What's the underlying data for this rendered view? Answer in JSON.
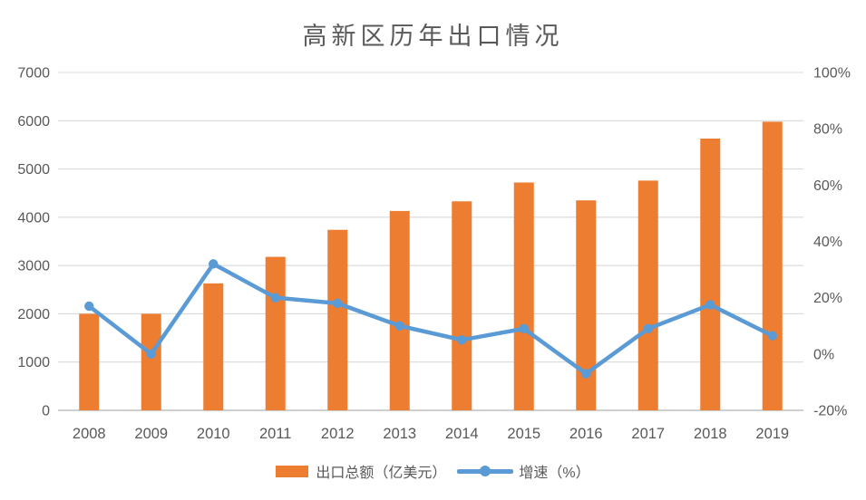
{
  "chart_data": {
    "type": "bar+line combo",
    "title": "高新区历年出口情况",
    "categories": [
      "2008",
      "2009",
      "2010",
      "2011",
      "2012",
      "2013",
      "2014",
      "2015",
      "2016",
      "2017",
      "2018",
      "2019"
    ],
    "series": [
      {
        "name": "出口总额（亿美元）",
        "type": "bar",
        "axis": "left",
        "color": "#ED7D31",
        "values": [
          2000,
          2000,
          2630,
          3180,
          3740,
          4130,
          4330,
          4720,
          4350,
          4760,
          5630,
          5980
        ]
      },
      {
        "name": "增速（%）",
        "type": "line",
        "axis": "right",
        "color": "#5B9BD5",
        "values": [
          17,
          0,
          32,
          20,
          18,
          10,
          5,
          9,
          -7,
          9,
          17.5,
          6.5
        ]
      }
    ],
    "axes": {
      "left": {
        "min": 0,
        "max": 7000,
        "step": 1000,
        "tick_labels": [
          "0",
          "1000",
          "2000",
          "3000",
          "4000",
          "5000",
          "6000",
          "7000"
        ]
      },
      "right": {
        "min": -20,
        "max": 100,
        "step": 20,
        "tick_labels": [
          "-20%",
          "0%",
          "20%",
          "40%",
          "60%",
          "80%",
          "100%"
        ]
      }
    },
    "grid": "horizontal",
    "legend_position": "bottom",
    "style": {
      "grid_color": "#D9D9D9",
      "axis_line_color": "#BFBFBF",
      "text_color": "#595959",
      "background": "#FFFFFF"
    }
  }
}
